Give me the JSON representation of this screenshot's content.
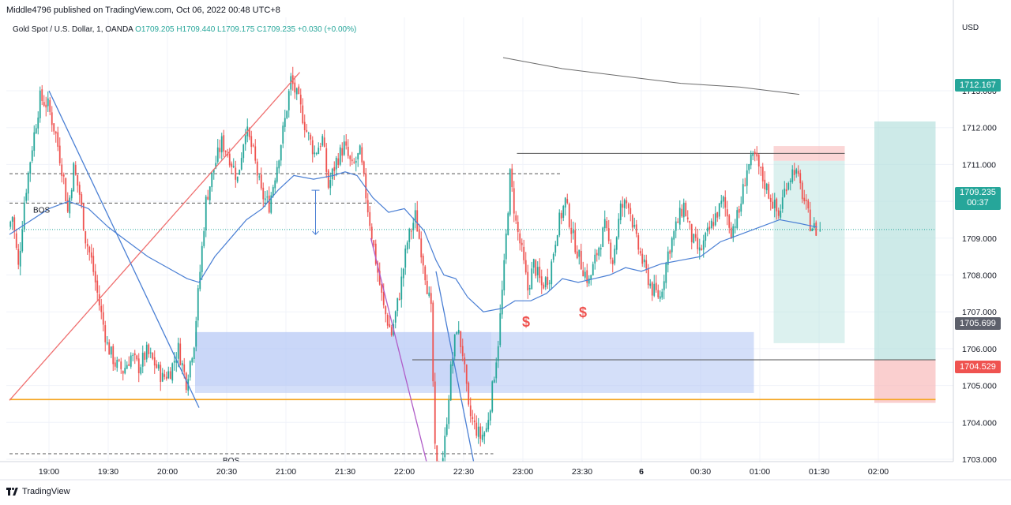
{
  "header": {
    "publisher": "Middle4796 published on TradingView.com, Oct 06, 2022 00:48 UTC+8",
    "symbol": "Gold Spot / U.S. Dollar, 1, OANDA",
    "ohlc": "O1709.205 H1709.440 L1709.175 C1709.235 +0.030 (+0.00%)",
    "currency": "USD"
  },
  "footer": {
    "brand": "TradingView"
  },
  "price_tags": {
    "target": "1712.167",
    "current": "1709.235",
    "countdown": "00:37",
    "entry": "1705.699",
    "stop": "1704.529"
  },
  "colors": {
    "bull": "#26a69a",
    "bear": "#ef5350",
    "ma": "#4a7fd4",
    "demand_zone": "#b7c9f5",
    "target_zone": "#b2dfdb",
    "stop_zone": "#f8bbbb",
    "orange_line": "#f5a623"
  },
  "annotations": {
    "bos_upper": "BOS",
    "bos_lower": "BOS",
    "liquidity_1": "$",
    "liquidity_2": "$"
  },
  "chart_data": {
    "type": "candlestick",
    "symbol": "XAUUSD",
    "timeframe": "1m",
    "ylim": [
      1702.0,
      1713.5
    ],
    "y_ticks": [
      "1703.000",
      "1704.000",
      "1705.000",
      "1706.000",
      "1707.000",
      "1708.000",
      "1709.000",
      "1710.000",
      "1711.000",
      "1712.000",
      "1713.000"
    ],
    "x_ticks": [
      "19:00",
      "19:30",
      "20:00",
      "20:30",
      "21:00",
      "21:30",
      "22:00",
      "22:30",
      "23:00",
      "23:30",
      "6",
      "00:30",
      "01:00",
      "01:30",
      "02:00"
    ],
    "x_tick_values": [
      0,
      30,
      60,
      90,
      120,
      150,
      180,
      210,
      240,
      270,
      300,
      330,
      360,
      390,
      420
    ],
    "last_price": 1709.235,
    "path_points": [
      [
        -20,
        1709.3
      ],
      [
        -18,
        1709.6
      ],
      [
        -15,
        1708.2
      ],
      [
        -12,
        1710.0
      ],
      [
        -8,
        1711.5
      ],
      [
        -4,
        1712.8
      ],
      [
        0,
        1712.6
      ],
      [
        4,
        1711.8
      ],
      [
        8,
        1710.6
      ],
      [
        10,
        1709.7
      ],
      [
        13,
        1710.9
      ],
      [
        16,
        1710.2
      ],
      [
        19,
        1709.0
      ],
      [
        22,
        1708.4
      ],
      [
        26,
        1707.2
      ],
      [
        30,
        1706.1
      ],
      [
        34,
        1705.6
      ],
      [
        38,
        1705.4
      ],
      [
        42,
        1705.8
      ],
      [
        46,
        1705.5
      ],
      [
        50,
        1705.9
      ],
      [
        54,
        1705.6
      ],
      [
        58,
        1705.2
      ],
      [
        62,
        1705.4
      ],
      [
        66,
        1706.0
      ],
      [
        70,
        1705.1
      ],
      [
        74,
        1706.2
      ],
      [
        77,
        1708.1
      ],
      [
        80,
        1710.0
      ],
      [
        84,
        1710.9
      ],
      [
        88,
        1711.6
      ],
      [
        92,
        1711.2
      ],
      [
        96,
        1710.6
      ],
      [
        100,
        1712.0
      ],
      [
        104,
        1711.3
      ],
      [
        108,
        1710.2
      ],
      [
        112,
        1709.9
      ],
      [
        116,
        1711.0
      ],
      [
        120,
        1712.2
      ],
      [
        123,
        1713.3
      ],
      [
        127,
        1712.7
      ],
      [
        131,
        1711.9
      ],
      [
        135,
        1711.3
      ],
      [
        139,
        1711.7
      ],
      [
        142,
        1710.4
      ],
      [
        146,
        1711.1
      ],
      [
        150,
        1711.5
      ],
      [
        154,
        1710.9
      ],
      [
        158,
        1711.3
      ],
      [
        162,
        1709.8
      ],
      [
        166,
        1708.4
      ],
      [
        170,
        1707.1
      ],
      [
        174,
        1706.4
      ],
      [
        178,
        1707.5
      ],
      [
        182,
        1708.9
      ],
      [
        186,
        1709.6
      ],
      [
        190,
        1708.4
      ],
      [
        194,
        1707.0
      ],
      [
        196,
        1703.2
      ],
      [
        198,
        1702.3
      ],
      [
        201,
        1703.5
      ],
      [
        204,
        1705.4
      ],
      [
        207,
        1706.6
      ],
      [
        210,
        1705.9
      ],
      [
        213,
        1704.3
      ],
      [
        216,
        1703.9
      ],
      [
        219,
        1703.6
      ],
      [
        222,
        1703.8
      ],
      [
        225,
        1704.9
      ],
      [
        228,
        1706.2
      ],
      [
        231,
        1708.2
      ],
      [
        234,
        1710.7
      ],
      [
        237,
        1709.4
      ],
      [
        240,
        1708.6
      ],
      [
        243,
        1707.6
      ],
      [
        246,
        1708.3
      ],
      [
        250,
        1707.7
      ],
      [
        254,
        1708.0
      ],
      [
        258,
        1709.3
      ],
      [
        262,
        1710.0
      ],
      [
        266,
        1709.0
      ],
      [
        270,
        1708.3
      ],
      [
        274,
        1707.8
      ],
      [
        278,
        1708.6
      ],
      [
        282,
        1709.3
      ],
      [
        286,
        1708.4
      ],
      [
        290,
        1709.8
      ],
      [
        294,
        1710.0
      ],
      [
        298,
        1708.9
      ],
      [
        302,
        1708.2
      ],
      [
        306,
        1707.6
      ],
      [
        310,
        1707.4
      ],
      [
        314,
        1708.6
      ],
      [
        318,
        1709.3
      ],
      [
        322,
        1709.9
      ],
      [
        326,
        1709.0
      ],
      [
        330,
        1708.6
      ],
      [
        334,
        1709.1
      ],
      [
        338,
        1709.6
      ],
      [
        342,
        1710.0
      ],
      [
        346,
        1709.2
      ],
      [
        350,
        1709.7
      ],
      [
        354,
        1710.9
      ],
      [
        358,
        1711.2
      ],
      [
        362,
        1710.6
      ],
      [
        366,
        1710.1
      ],
      [
        370,
        1709.6
      ],
      [
        374,
        1710.5
      ],
      [
        378,
        1710.9
      ],
      [
        382,
        1710.2
      ],
      [
        386,
        1709.4
      ],
      [
        389,
        1709.2
      ]
    ],
    "moving_average": [
      [
        -20,
        1709.1
      ],
      [
        0,
        1709.8
      ],
      [
        10,
        1710.0
      ],
      [
        20,
        1709.8
      ],
      [
        30,
        1709.3
      ],
      [
        40,
        1708.9
      ],
      [
        50,
        1708.5
      ],
      [
        60,
        1708.2
      ],
      [
        70,
        1707.9
      ],
      [
        76,
        1707.8
      ],
      [
        84,
        1708.5
      ],
      [
        92,
        1709.0
      ],
      [
        100,
        1709.5
      ],
      [
        108,
        1709.8
      ],
      [
        116,
        1710.3
      ],
      [
        124,
        1710.7
      ],
      [
        134,
        1710.6
      ],
      [
        144,
        1710.7
      ],
      [
        150,
        1710.8
      ],
      [
        156,
        1710.7
      ],
      [
        164,
        1710.1
      ],
      [
        172,
        1709.7
      ],
      [
        180,
        1709.8
      ],
      [
        190,
        1709.2
      ],
      [
        196,
        1708.4
      ],
      [
        200,
        1708.0
      ],
      [
        206,
        1707.9
      ],
      [
        212,
        1707.4
      ],
      [
        220,
        1707.0
      ],
      [
        230,
        1707.1
      ],
      [
        236,
        1707.3
      ],
      [
        244,
        1707.3
      ],
      [
        252,
        1707.5
      ],
      [
        260,
        1707.9
      ],
      [
        268,
        1707.8
      ],
      [
        276,
        1707.9
      ],
      [
        284,
        1708.0
      ],
      [
        292,
        1708.2
      ],
      [
        300,
        1708.1
      ],
      [
        310,
        1708.3
      ],
      [
        320,
        1708.4
      ],
      [
        330,
        1708.5
      ],
      [
        340,
        1708.9
      ],
      [
        350,
        1709.1
      ],
      [
        360,
        1709.3
      ],
      [
        370,
        1709.5
      ],
      [
        380,
        1709.4
      ],
      [
        389,
        1709.3
      ]
    ],
    "long_ma": [
      [
        230,
        1713.9
      ],
      [
        260,
        1713.6
      ],
      [
        290,
        1713.4
      ],
      [
        320,
        1713.2
      ],
      [
        350,
        1713.1
      ],
      [
        380,
        1712.9
      ]
    ],
    "levels": {
      "bos_upper": {
        "price": 1709.95,
        "from": -20,
        "to": 165
      },
      "dashed_upper": {
        "price": 1710.75,
        "from": -20,
        "to": 260
      },
      "bos_lower": {
        "price": 1703.15,
        "from": -20,
        "to": 225
      },
      "current_dotted": {
        "price": 1709.235,
        "from": -20,
        "to": 449
      },
      "orange": {
        "price": 1704.62,
        "from": -20,
        "to": 449
      },
      "entry": {
        "price": 1705.699,
        "from": 184,
        "to": 449
      },
      "top_line": {
        "price": 1711.3,
        "from": 237,
        "to": 403
      }
    },
    "zones": {
      "demand": {
        "from": 74,
        "to": 357,
        "top": 1706.45,
        "bottom": 1704.8
      },
      "demand_narrow": {
        "from": 74,
        "to": 224,
        "top": 1706.45,
        "bottom": 1705.0
      },
      "sell_target": {
        "from": 367,
        "to": 403,
        "top": 1711.1,
        "bottom": 1706.15
      },
      "sell_stop": {
        "from": 367,
        "to": 403,
        "top": 1711.5,
        "bottom": 1711.1
      },
      "buy_target": {
        "from": 418,
        "to": 449,
        "top": 1712.167,
        "bottom": 1705.699
      },
      "buy_stop": {
        "from": 418,
        "to": 449,
        "top": 1705.699,
        "bottom": 1704.529
      }
    },
    "trend_lines": [
      {
        "color": "#ef6f6f",
        "points": [
          [
            -20,
            1704.6
          ],
          [
            127,
            1713.5
          ]
        ]
      },
      {
        "color": "#b05cc8",
        "points": [
          [
            163,
            1709.0
          ],
          [
            196,
            1701.9
          ]
        ]
      },
      {
        "color": "#4a7fd4",
        "points": [
          [
            0,
            1713.0
          ],
          [
            76,
            1704.4
          ]
        ]
      },
      {
        "color": "#4a7fd4",
        "points": [
          [
            196,
            1708.1
          ],
          [
            215,
            1702.95
          ]
        ]
      }
    ]
  }
}
